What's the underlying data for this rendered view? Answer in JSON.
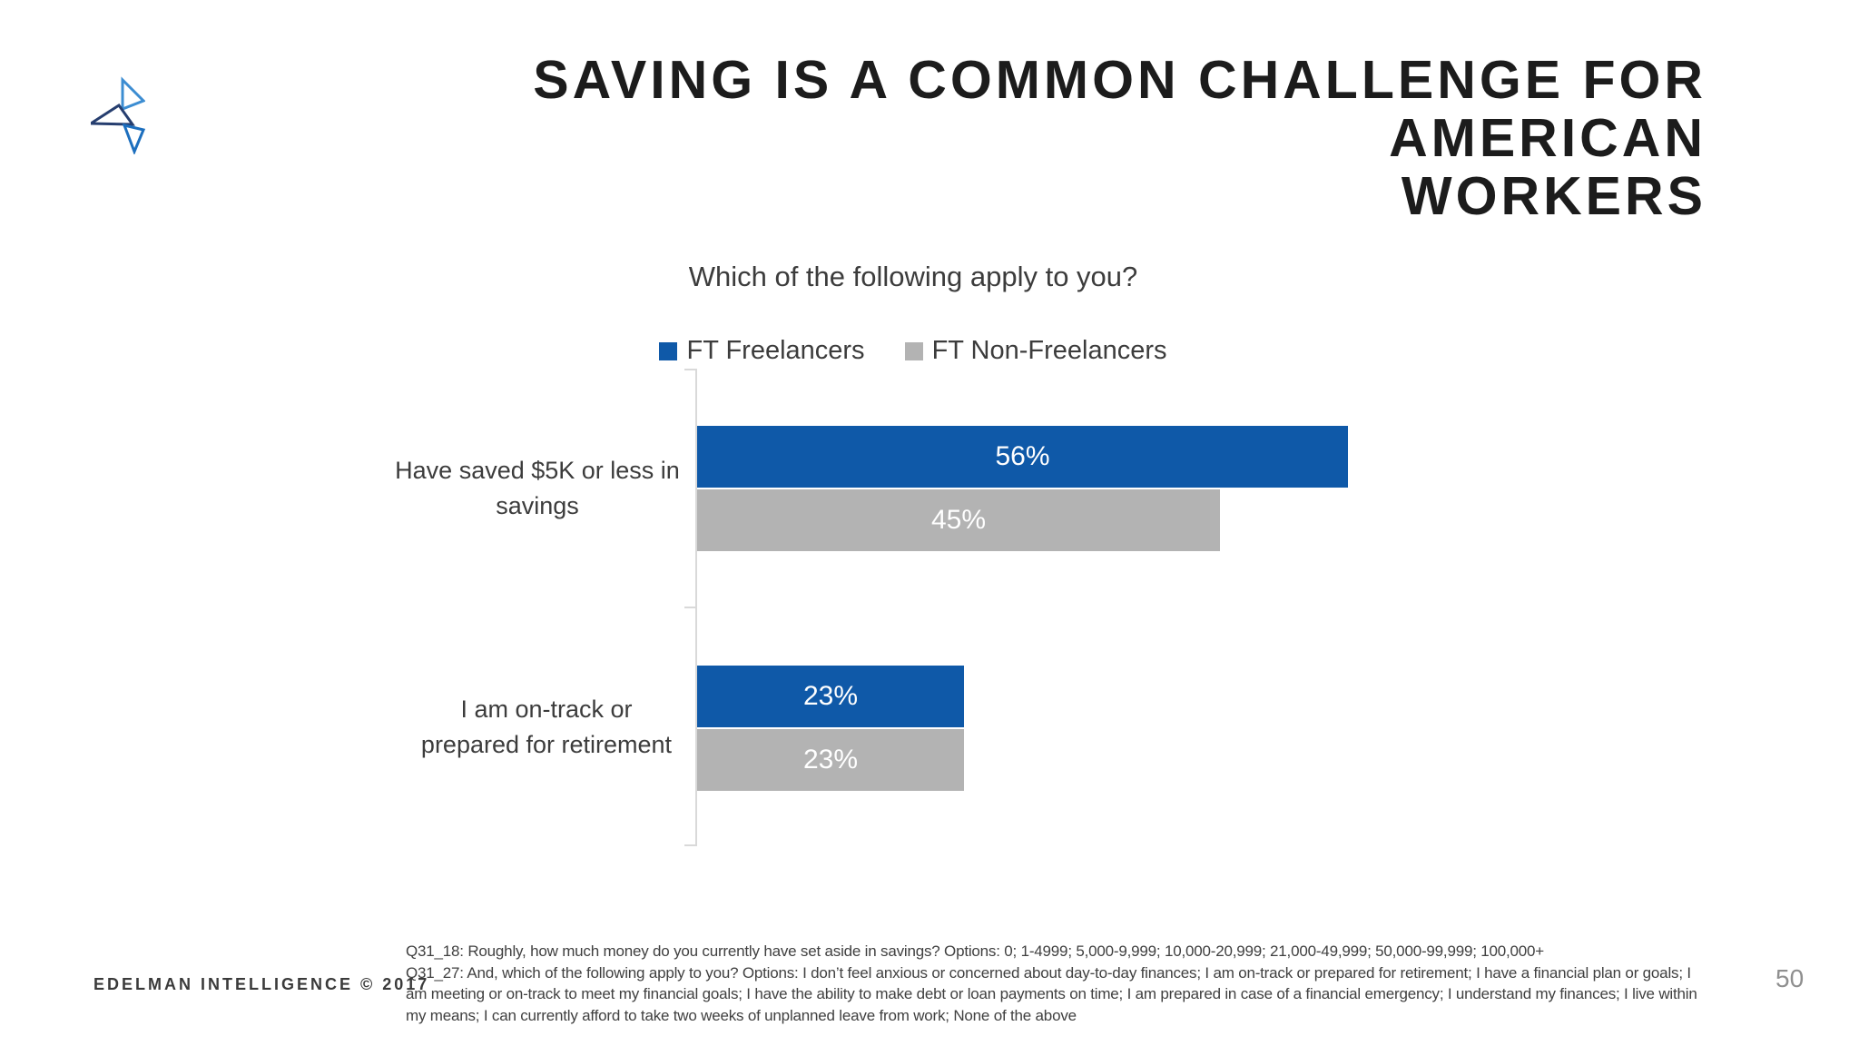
{
  "slide": {
    "title_lines": [
      "SAVING IS A COMMON CHALLENGE FOR AMERICAN",
      "WORKERS"
    ],
    "footer": "EDELMAN INTELLIGENCE © 2017",
    "page_number": "50",
    "footnote_lines": [
      "Q31_18: Roughly, how much money do you currently have set aside in savings? Options: 0; 1-4999; 5,000-9,999; 10,000-20,999; 21,000-49,999; 50,000-99,999; 100,000+",
      "Q31_27: And, which of the following apply to you? Options: I don’t feel anxious or concerned about day-to-day finances; I am on-track or prepared for retirement; I have a financial plan or goals; I",
      "am meeting or on-track to meet my financial goals; I have the ability to make debt or loan payments on time; I am prepared in case of a financial emergency; I understand my finances; I live within",
      "my means; I can currently afford to take two weeks of unplanned leave from work; None of the above"
    ],
    "logo_colors": {
      "light_blue": "#3c8dd2",
      "navy": "#263e6f",
      "mid_blue": "#1d6fbe"
    }
  },
  "chart_data": {
    "type": "bar",
    "orientation": "horizontal",
    "title": "Which of the following apply to you?",
    "legend_position": "top",
    "value_suffix": "%",
    "axis_color": "#d9d9d9",
    "legend": [
      {
        "name": "FT Freelancers",
        "color": "#0f59a8"
      },
      {
        "name": "FT Non-Freelancers",
        "color": "#b3b3b3"
      }
    ],
    "categories": [
      "Have saved $5K or less in savings",
      "I am on-track or prepared for retirement"
    ],
    "category_lines": [
      [
        "Have saved $5K or less in",
        "savings"
      ],
      [
        "I am on-track or",
        "prepared for retirement"
      ]
    ],
    "series": [
      {
        "name": "FT Freelancers",
        "values": [
          56,
          23
        ]
      },
      {
        "name": "FT Non-Freelancers",
        "values": [
          45,
          23
        ]
      }
    ],
    "xlim": [
      0,
      100
    ]
  }
}
